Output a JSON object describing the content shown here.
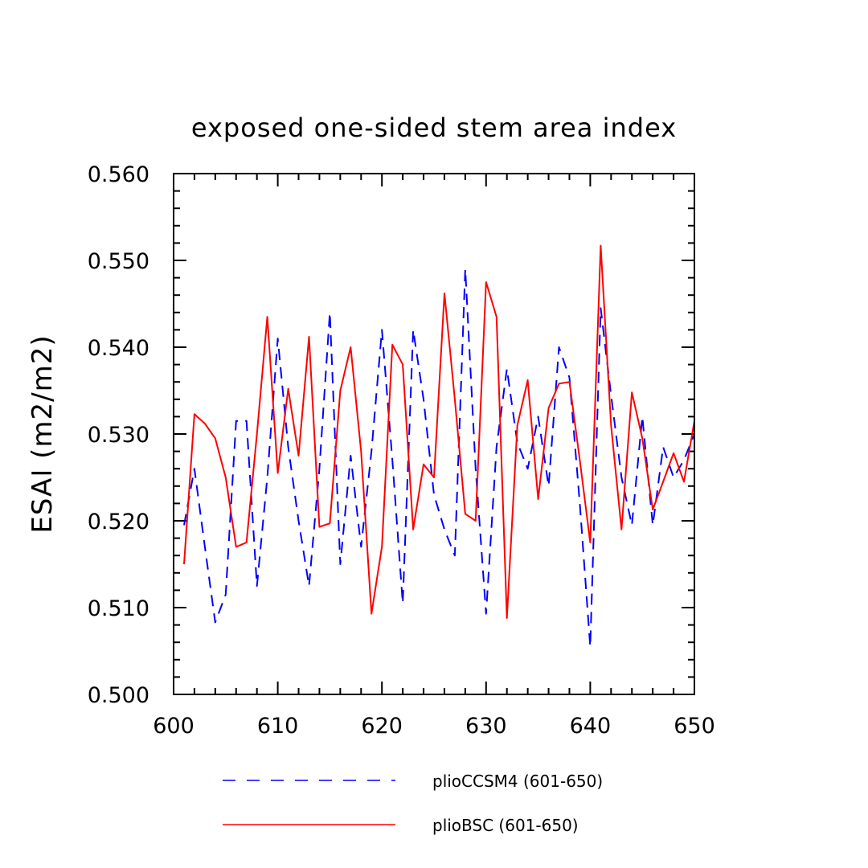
{
  "chart_data": {
    "type": "line",
    "title": "exposed one-sided stem area index",
    "xlabel": "",
    "ylabel": "ESAI  (m2/m2)",
    "xlim": [
      600,
      650
    ],
    "ylim": [
      0.5,
      0.56
    ],
    "xticks": [
      "600",
      "610",
      "620",
      "630",
      "640",
      "650"
    ],
    "yticks": [
      "0.500",
      "0.510",
      "0.520",
      "0.530",
      "0.540",
      "0.550",
      "0.560"
    ],
    "grid": false,
    "legend_position": "bottom",
    "x": [
      601,
      602,
      603,
      604,
      605,
      606,
      607,
      608,
      609,
      610,
      611,
      612,
      613,
      614,
      615,
      616,
      617,
      618,
      619,
      620,
      621,
      622,
      623,
      624,
      625,
      626,
      627,
      628,
      629,
      630,
      631,
      632,
      633,
      634,
      635,
      636,
      637,
      638,
      639,
      640,
      641,
      642,
      643,
      644,
      645,
      646,
      647,
      648,
      649,
      650
    ],
    "series": [
      {
        "name": "plioCCSM4 (601-650)",
        "color": "#0000ff",
        "style": "dashed",
        "values": [
          0.5195,
          0.526,
          0.517,
          0.5083,
          0.5115,
          0.5315,
          0.5315,
          0.5125,
          0.525,
          0.541,
          0.5285,
          0.52,
          0.5125,
          0.526,
          0.544,
          0.515,
          0.5275,
          0.517,
          0.528,
          0.542,
          0.527,
          0.5105,
          0.542,
          0.534,
          0.523,
          0.519,
          0.516,
          0.549,
          0.526,
          0.5093,
          0.5285,
          0.5375,
          0.529,
          0.526,
          0.532,
          0.524,
          0.54,
          0.5365,
          0.522,
          0.5055,
          0.5445,
          0.5345,
          0.525,
          0.5195,
          0.532,
          0.5195,
          0.5285,
          0.525,
          0.527,
          0.53
        ]
      },
      {
        "name": "plioBSC (601-650)",
        "color": "#ff0000",
        "style": "solid",
        "values": [
          0.515,
          0.5323,
          0.5312,
          0.5295,
          0.525,
          0.517,
          0.5175,
          0.53,
          0.5435,
          0.5255,
          0.5352,
          0.5275,
          0.5412,
          0.5193,
          0.5197,
          0.535,
          0.54,
          0.528,
          0.5093,
          0.517,
          0.5403,
          0.538,
          0.519,
          0.5265,
          0.525,
          0.5462,
          0.534,
          0.5208,
          0.52,
          0.5475,
          0.5435,
          0.5088,
          0.531,
          0.5362,
          0.5225,
          0.533,
          0.5358,
          0.536,
          0.527,
          0.5175,
          0.5517,
          0.531,
          0.519,
          0.5348,
          0.5295,
          0.5213,
          0.5245,
          0.5278,
          0.5245,
          0.5315
        ]
      }
    ]
  }
}
